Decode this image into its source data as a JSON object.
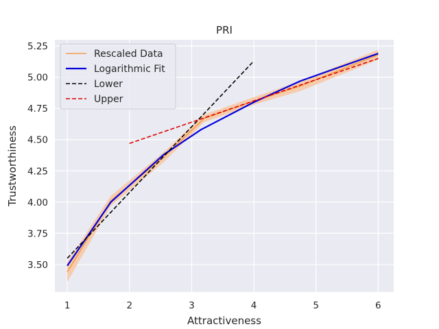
{
  "chart_data": {
    "type": "line",
    "title": "PRI",
    "xlabel": "Attractiveness",
    "ylabel": "Trustworthiness",
    "xlim": [
      0.8,
      6.25
    ],
    "ylim": [
      3.28,
      5.3
    ],
    "xticks": [
      1,
      2,
      3,
      4,
      5,
      6
    ],
    "yticks": [
      3.5,
      3.75,
      4.0,
      4.25,
      4.5,
      4.75,
      5.0,
      5.25
    ],
    "xtick_labels": [
      "1",
      "2",
      "3",
      "4",
      "5",
      "6"
    ],
    "ytick_labels": [
      "3.50",
      "3.75",
      "4.00",
      "4.25",
      "4.50",
      "4.75",
      "5.00",
      "5.25"
    ],
    "grid": true,
    "legend_position": "top-left",
    "series": [
      {
        "name": "Rescaled Data",
        "color": "#f39c4a",
        "style": "solid",
        "x": [
          1.0,
          1.7,
          2.55,
          3.2,
          4.0,
          4.75,
          6.0
        ],
        "y": [
          3.44,
          4.01,
          4.36,
          4.67,
          4.81,
          4.93,
          5.18
        ],
        "band_lower": [
          3.36,
          3.97,
          4.32,
          4.64,
          4.78,
          4.89,
          5.14
        ],
        "band_upper": [
          3.52,
          4.05,
          4.4,
          4.7,
          4.84,
          4.97,
          5.22
        ]
      },
      {
        "name": "Logarithmic Fit",
        "color": "#0000dd",
        "style": "solid",
        "x": [
          1.0,
          1.7,
          2.55,
          3.15,
          4.0,
          4.75,
          6.0
        ],
        "y": [
          3.49,
          4.0,
          4.38,
          4.58,
          4.8,
          4.97,
          5.19
        ]
      },
      {
        "name": "Lower",
        "color": "#000000",
        "style": "dashed",
        "x": [
          1.0,
          4.0
        ],
        "y": [
          3.55,
          5.13
        ]
      },
      {
        "name": "Upper",
        "color": "#dd0000",
        "style": "dashed",
        "x": [
          2.0,
          6.0
        ],
        "y": [
          4.47,
          5.15
        ]
      }
    ]
  },
  "colors": {
    "plot_background": "#eaeaf2",
    "grid": "#ffffff",
    "band": "#f7c9a6"
  }
}
